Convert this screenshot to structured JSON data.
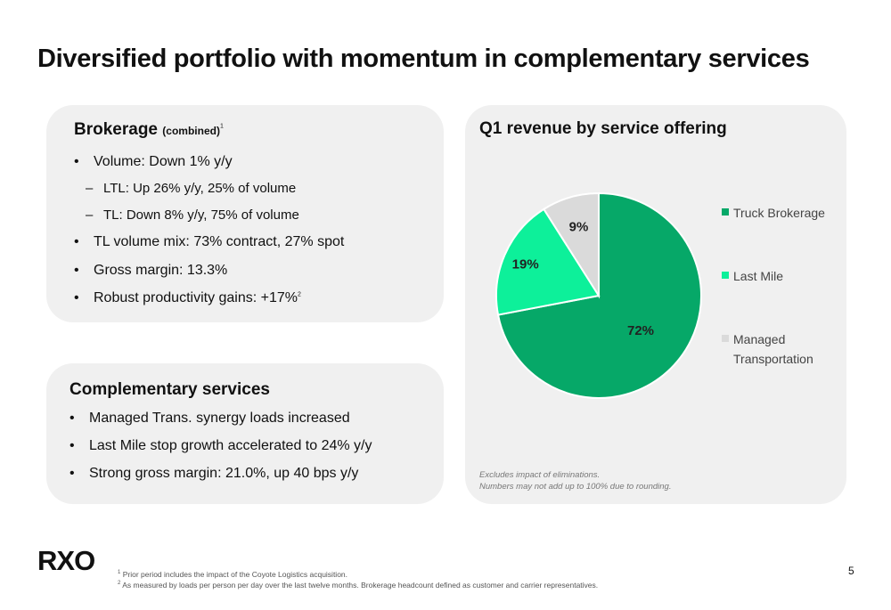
{
  "title": "Diversified portfolio with momentum in complementary services",
  "brokerage": {
    "heading": "Brokerage",
    "heading_suffix": "(combined)",
    "heading_footnote_ref": "1",
    "items": [
      {
        "marker": "•",
        "text": "Volume: Down 1% y/y"
      },
      {
        "marker": "–",
        "text": "LTL: Up 26% y/y, 25% of volume"
      },
      {
        "marker": "–",
        "text": "TL: Down 8% y/y, 75% of volume"
      },
      {
        "marker": "•",
        "text": "TL volume mix: 73% contract, 27% spot"
      },
      {
        "marker": "•",
        "text": "Gross margin: 13.3%"
      },
      {
        "marker": "•",
        "text": "Robust productivity gains: +17%",
        "footnote_ref": "2"
      }
    ]
  },
  "complementary": {
    "heading": "Complementary services",
    "items": [
      {
        "marker": "•",
        "text": "Managed Trans. synergy loads increased"
      },
      {
        "marker": "•",
        "text": "Last Mile stop growth accelerated to 24% y/y"
      },
      {
        "marker": "•",
        "text": "Strong gross margin: 21.0%, up 40 bps y/y"
      }
    ]
  },
  "chart_data": {
    "type": "pie",
    "title": "Q1 revenue by service offering",
    "categories": [
      "Truck Brokerage",
      "Last Mile",
      "Managed Transportation"
    ],
    "values": [
      72,
      19,
      9
    ],
    "labels": [
      "72%",
      "19%",
      "9%"
    ],
    "colors": [
      "#06a868",
      "#0df09a",
      "#dadada"
    ],
    "legend_position": "right",
    "legend_lines": [
      [
        "Truck Brokerage"
      ],
      [
        "Last Mile"
      ],
      [
        "Managed",
        "Transportation"
      ]
    ],
    "notes": [
      "Excludes impact of eliminations.",
      "Numbers may not add up to 100% due to rounding."
    ]
  },
  "logo_text": "RXO",
  "footnotes": [
    {
      "ref": "1",
      "text": "Prior period includes the impact of the Coyote Logistics acquisition."
    },
    {
      "ref": "2",
      "text": "As measured by loads per person per day over the last twelve months. Brokerage headcount defined as customer and carrier representatives."
    }
  ],
  "page_number": "5"
}
